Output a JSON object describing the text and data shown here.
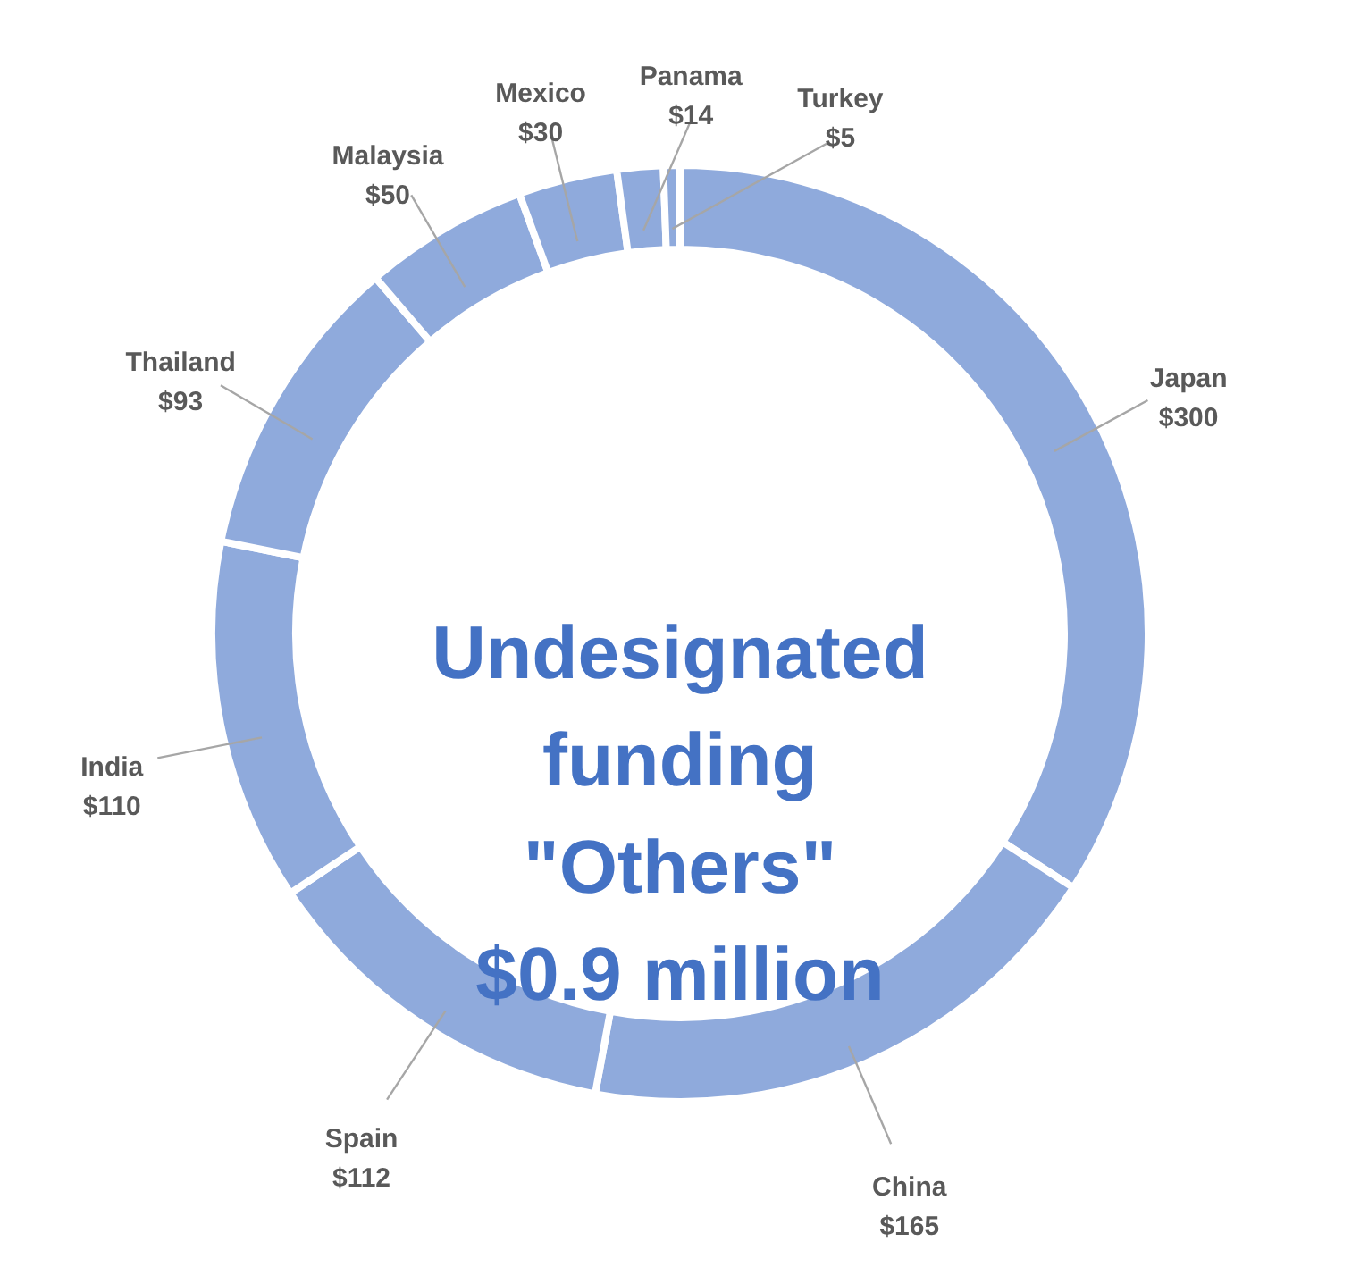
{
  "chart_data": {
    "type": "donut",
    "title": "Undesignated funding \"Others\" $0.9 million",
    "categories": [
      "Japan",
      "China",
      "Spain",
      "India",
      "Thailand",
      "Malaysia",
      "Mexico",
      "Panama",
      "Turkey"
    ],
    "values": [
      300,
      165,
      112,
      110,
      93,
      50,
      30,
      14,
      5
    ],
    "value_labels": [
      "$300",
      "$165",
      "$112",
      "$110",
      "$93",
      "$50",
      "$30",
      "$14",
      "$5"
    ],
    "colors": [
      "#8faadc",
      "#8faadc",
      "#8faadc",
      "#8faadc",
      "#8faadc",
      "#8faadc",
      "#8faadc",
      "#8faadc",
      "#8faadc"
    ]
  }
}
